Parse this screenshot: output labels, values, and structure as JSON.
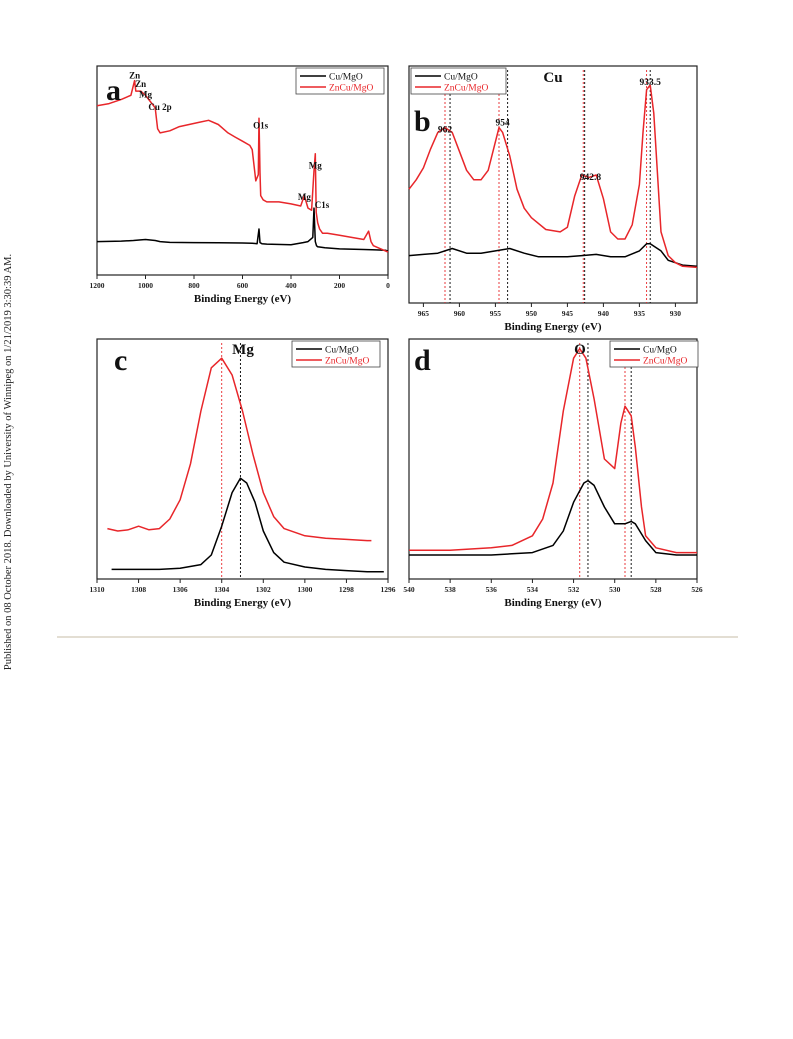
{
  "sidebar_note": "Published on 08 October 2018. Downloaded by University of Winnipeg on 1/21/2019 3:30:39 AM.",
  "chart_data": [
    {
      "panel": "a",
      "type": "line",
      "title": "",
      "xlabel": "Binding Energy (eV)",
      "ylabel": "",
      "xlim": [
        1200,
        0
      ],
      "ylim": [
        0,
        100
      ],
      "xticks": [
        1200,
        1000,
        800,
        600,
        400,
        200,
        0
      ],
      "legend": "top-right",
      "grid": false,
      "annotations": [
        {
          "text": "Zn",
          "x": 1045,
          "y": 94
        },
        {
          "text": "Zn",
          "x": 1020,
          "y": 90
        },
        {
          "text": "Mg",
          "x": 1000,
          "y": 85
        },
        {
          "text": "Cu 2p",
          "x": 940,
          "y": 79
        },
        {
          "text": "O1s",
          "x": 525,
          "y": 70
        },
        {
          "text": "Mg",
          "x": 300,
          "y": 51
        },
        {
          "text": "Mg",
          "x": 345,
          "y": 36
        },
        {
          "text": "C1s",
          "x": 272,
          "y": 32
        }
      ],
      "series": [
        {
          "name": "Cu/MgO",
          "color": "#000000",
          "x": [
            1200,
            1100,
            1050,
            1020,
            1000,
            960,
            940,
            900,
            800,
            700,
            600,
            560,
            540,
            532,
            528,
            520,
            500,
            400,
            350,
            330,
            310,
            305,
            300,
            295,
            290,
            260,
            200,
            100,
            50,
            10,
            0
          ],
          "y": [
            16,
            16.2,
            16.5,
            16.8,
            17,
            16.5,
            16,
            15.6,
            15.5,
            15.4,
            15.3,
            15.2,
            15,
            22,
            15.5,
            15,
            14.8,
            14.5,
            15.5,
            16,
            18,
            32,
            16,
            14,
            13.5,
            13,
            12.5,
            12.2,
            12,
            11.8,
            11.5
          ]
        },
        {
          "name": "ZnCu/MgO",
          "color": "#e8262a",
          "x": [
            1200,
            1150,
            1100,
            1060,
            1045,
            1040,
            1020,
            1000,
            980,
            960,
            955,
            950,
            940,
            900,
            860,
            820,
            780,
            740,
            700,
            660,
            630,
            600,
            570,
            560,
            545,
            535,
            532,
            528,
            525,
            515,
            500,
            480,
            450,
            400,
            360,
            345,
            330,
            315,
            305,
            300,
            296,
            290,
            282,
            270,
            250,
            200,
            150,
            100,
            80,
            70,
            60,
            40,
            20,
            0
          ],
          "y": [
            81,
            82,
            84,
            86,
            93,
            88,
            88,
            86,
            83,
            80,
            75,
            70,
            68,
            69,
            71,
            72,
            73,
            74,
            72,
            68,
            66,
            64,
            62,
            60,
            45,
            48,
            75,
            49,
            38,
            36,
            35,
            35,
            35,
            34,
            33,
            38,
            32,
            31,
            50,
            58,
            30,
            25,
            22,
            20,
            20,
            19,
            18,
            17,
            21,
            16,
            14,
            13,
            12,
            11
          ]
        }
      ]
    },
    {
      "panel": "b",
      "type": "line",
      "title": "Cu",
      "xlabel": "Binding Energy (eV)",
      "ylabel": "",
      "xlim": [
        967,
        927
      ],
      "ylim": [
        0,
        100
      ],
      "xticks": [
        965,
        960,
        955,
        950,
        945,
        940,
        935,
        930
      ],
      "legend": "top-left",
      "grid": false,
      "annotations": [
        {
          "text": "962",
          "x": 962,
          "y": 72
        },
        {
          "text": "954",
          "x": 954,
          "y": 75
        },
        {
          "text": "942.8",
          "x": 941.8,
          "y": 52
        },
        {
          "text": "933.5",
          "x": 933.5,
          "y": 92
        }
      ],
      "reference_lines": [
        {
          "x": 962,
          "color": "#e8262a"
        },
        {
          "x": 961.3,
          "color": "#000000"
        },
        {
          "x": 954.5,
          "color": "#e8262a"
        },
        {
          "x": 953.3,
          "color": "#000000"
        },
        {
          "x": 942.8,
          "color": "#e8262a"
        },
        {
          "x": 942.6,
          "color": "#000000"
        },
        {
          "x": 934.0,
          "color": "#e8262a"
        },
        {
          "x": 933.5,
          "color": "#000000"
        }
      ],
      "series": [
        {
          "name": "Cu/MgO",
          "color": "#000000",
          "x": [
            967,
            965,
            963,
            961,
            959,
            957,
            955,
            953,
            951,
            949,
            947,
            945,
            943,
            941,
            939,
            937,
            935,
            934,
            933.5,
            932,
            931,
            929,
            927
          ],
          "y": [
            20,
            20.5,
            21,
            23,
            21,
            21,
            22,
            23,
            21,
            19.5,
            19.5,
            19.5,
            20,
            20.5,
            19.5,
            19.5,
            22,
            25,
            25,
            22,
            18,
            16,
            15.5
          ]
        },
        {
          "name": "ZnCu/MgO",
          "color": "#e8262a",
          "x": [
            967,
            966,
            965,
            964,
            963,
            962,
            961,
            960,
            959,
            958,
            957,
            956,
            955,
            954.5,
            954,
            953,
            952,
            951,
            950,
            948,
            946,
            945,
            944,
            943,
            942,
            941,
            940,
            939,
            938,
            937,
            936,
            935,
            934.5,
            934,
            933.5,
            933,
            932.5,
            932,
            931,
            930,
            929,
            927
          ],
          "y": [
            48,
            52,
            57,
            65,
            72,
            74,
            72,
            64,
            56,
            52,
            52,
            56,
            68,
            74,
            72,
            62,
            48,
            40,
            36,
            31,
            30,
            32,
            45,
            54,
            53,
            54,
            44,
            30,
            27,
            27,
            33,
            50,
            72,
            90,
            92,
            80,
            55,
            30,
            20,
            17,
            15.5,
            15
          ]
        }
      ]
    },
    {
      "panel": "c",
      "type": "line",
      "title": "Mg",
      "xlabel": "Binding Energy (eV)",
      "ylabel": "",
      "xlim": [
        1310,
        1296
      ],
      "ylim": [
        0,
        100
      ],
      "xticks": [
        1310,
        1308,
        1306,
        1304,
        1302,
        1300,
        1298,
        1296
      ],
      "legend": "top-right",
      "grid": false,
      "reference_lines": [
        {
          "x": 1304,
          "color": "#e8262a"
        },
        {
          "x": 1303.1,
          "color": "#000000"
        }
      ],
      "series": [
        {
          "name": "Cu/MgO",
          "color": "#000000",
          "x": [
            1309.3,
            1308,
            1307,
            1306,
            1305,
            1304.5,
            1304,
            1303.5,
            1303.1,
            1302.8,
            1302.4,
            1302,
            1301.5,
            1301,
            1300,
            1299,
            1298,
            1297,
            1296.2
          ],
          "y": [
            4,
            4,
            4,
            4.5,
            6,
            10,
            22,
            36,
            42,
            40,
            32,
            20,
            11,
            7,
            5,
            4,
            3.5,
            3,
            3
          ]
        },
        {
          "name": "ZnCu/MgO",
          "color": "#e8262a",
          "x": [
            1309.5,
            1309,
            1308.5,
            1308,
            1307.5,
            1307,
            1306.5,
            1306,
            1305.5,
            1305,
            1304.5,
            1304,
            1303.5,
            1303,
            1302.5,
            1302,
            1301.5,
            1301,
            1300,
            1299,
            1298,
            1297,
            1296.8
          ],
          "y": [
            21,
            20,
            20.5,
            22,
            20.5,
            21,
            25,
            33,
            48,
            70,
            88,
            92,
            85,
            70,
            52,
            36,
            26,
            21,
            18,
            17,
            16.5,
            16,
            16
          ]
        }
      ]
    },
    {
      "panel": "d",
      "type": "line",
      "title": "O",
      "xlabel": "Binding Energy (eV)",
      "ylabel": "",
      "xlim": [
        540,
        526
      ],
      "ylim": [
        0,
        100
      ],
      "xticks": [
        540,
        538,
        536,
        534,
        532,
        530,
        528,
        526
      ],
      "legend": "top-right",
      "grid": false,
      "reference_lines": [
        {
          "x": 531.7,
          "color": "#e8262a"
        },
        {
          "x": 531.3,
          "color": "#000000"
        },
        {
          "x": 529.5,
          "color": "#e8262a"
        },
        {
          "x": 529.2,
          "color": "#000000"
        }
      ],
      "series": [
        {
          "name": "Cu/MgO",
          "color": "#000000",
          "x": [
            540,
            538,
            536,
            535,
            534,
            533,
            532.5,
            532,
            531.5,
            531.3,
            531,
            530.5,
            530,
            529.5,
            529.2,
            529,
            528.5,
            528,
            527,
            526
          ],
          "y": [
            10,
            10,
            10,
            10.5,
            11,
            14,
            20,
            32,
            40,
            41,
            39,
            30,
            23,
            23,
            24,
            23,
            16,
            11,
            10,
            10
          ]
        },
        {
          "name": "ZnCu/MgO",
          "color": "#e8262a",
          "x": [
            540,
            538,
            536,
            535,
            534,
            533.5,
            533,
            532.5,
            532,
            531.7,
            531.4,
            531,
            530.5,
            530,
            529.7,
            529.5,
            529.2,
            529,
            528.7,
            528.5,
            528,
            527,
            526
          ],
          "y": [
            12,
            12,
            13,
            14,
            18,
            25,
            40,
            70,
            92,
            96,
            92,
            75,
            50,
            46,
            65,
            72,
            68,
            55,
            30,
            18,
            13,
            11,
            11
          ]
        }
      ]
    }
  ],
  "panel_labels": {
    "a": "a",
    "b": "b",
    "c": "c",
    "d": "d"
  },
  "legend_labels": {
    "s1": "Cu/MgO",
    "s2": "ZnCu/MgO"
  }
}
